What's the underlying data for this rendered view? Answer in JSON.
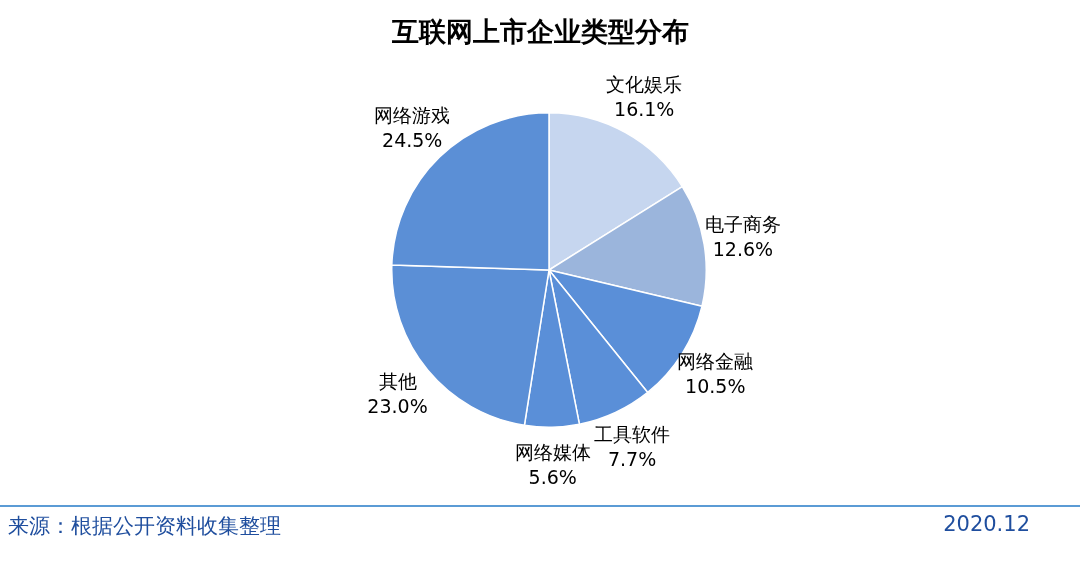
{
  "chart_data": {
    "type": "pie",
    "title": "互联网上市企业类型分布",
    "categories": [
      "文化娱乐",
      "电子商务",
      "网络金融",
      "工具软件",
      "网络媒体",
      "其他",
      "网络游戏"
    ],
    "values": [
      16.1,
      12.6,
      10.5,
      7.7,
      5.6,
      23.0,
      24.5
    ],
    "value_labels": [
      "16.1%",
      "12.6%",
      "10.5%",
      "7.7%",
      "5.6%",
      "23.0%",
      "24.5%"
    ],
    "colors": [
      "#c6d6ef",
      "#9bb5dc",
      "#5a8fd8",
      "#5a8fd8",
      "#5a8fd8",
      "#5b8fd6",
      "#5b8fd6"
    ],
    "legend": false,
    "annotations": [
      "来源：根据公开资料收集整理",
      "2020.12"
    ]
  }
}
